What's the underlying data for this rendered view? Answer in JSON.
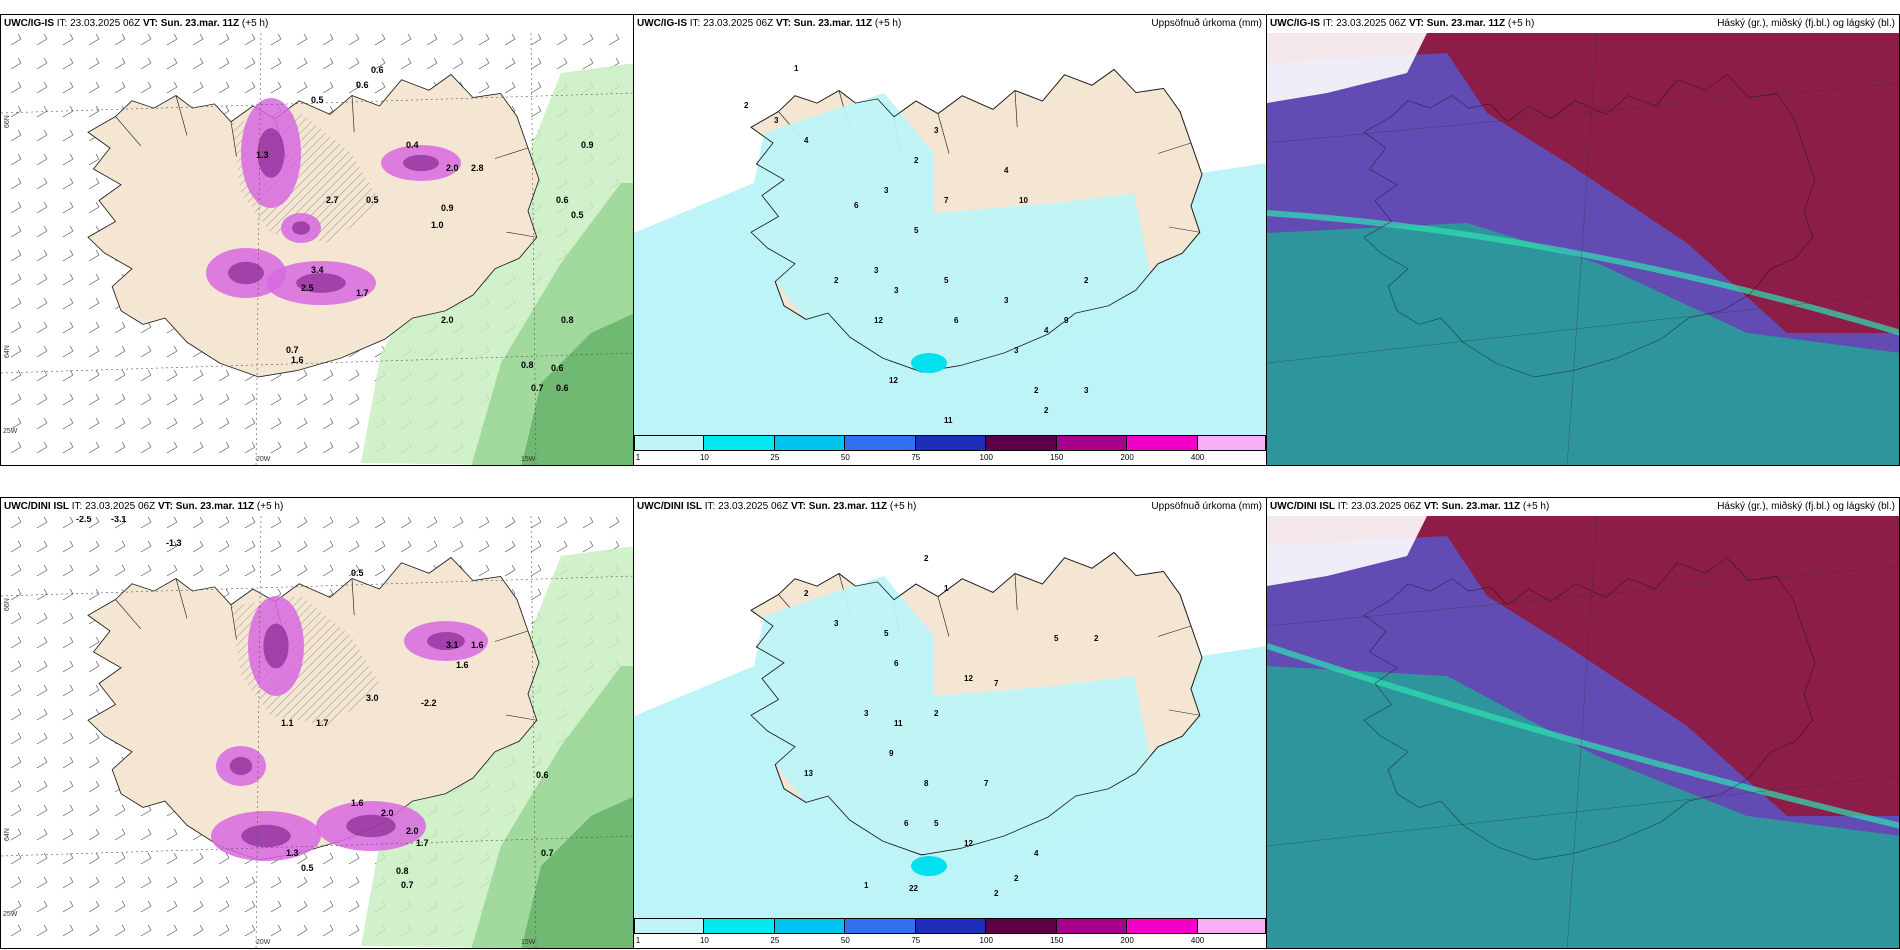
{
  "panels": [
    {
      "id": "top-left",
      "model": "UWC/IG-IS",
      "it_label": "IT:",
      "it_value": "23.03.2025 06Z",
      "vt_label": "VT:",
      "vt_value": "Sun. 23.mar. 11Z",
      "lead": "(+5 h)",
      "right_title": "",
      "lon_labels": [
        "20W",
        "15W",
        "25W"
      ],
      "lat_labels": [
        "66N",
        "64N"
      ],
      "values": [
        "0.6",
        "0.5",
        "0.6",
        "0.9",
        "1.3",
        "2.8",
        "0.4",
        "2.0",
        "3.4",
        "2.5",
        "1.7",
        "2.7",
        "0.5",
        "0.9",
        "1.0",
        "0.8",
        "0.6",
        "0.5",
        "0.7",
        "0.8",
        "0.6",
        "0.7",
        "0.6",
        "2.0",
        "1.6"
      ]
    },
    {
      "id": "top-middle",
      "model": "UWC/IG-IS",
      "it_label": "IT:",
      "it_value": "23.03.2025 06Z",
      "vt_label": "VT:",
      "vt_value": "Sun. 23.mar. 11Z",
      "lead": "(+5 h)",
      "right_title": "Uppsöfnuð úrkoma (mm)",
      "values": [
        "1",
        "2",
        "3",
        "4",
        "3",
        "2",
        "4",
        "3",
        "6",
        "7",
        "10",
        "5",
        "3",
        "2",
        "3",
        "12",
        "5",
        "6",
        "3",
        "4",
        "2",
        "9",
        "3",
        "2",
        "11",
        "12",
        "2",
        "3"
      ],
      "colorbar_ticks": [
        "1",
        "10",
        "25",
        "50",
        "75",
        "100",
        "150",
        "200",
        "400"
      ]
    },
    {
      "id": "top-right",
      "model": "UWC/IG-IS",
      "it_label": "IT:",
      "it_value": "23.03.2025 06Z",
      "vt_label": "VT:",
      "vt_value": "Sun. 23.mar. 11Z",
      "lead": "(+5 h)",
      "right_title": "Háský (gr.), miðský (fj.bl.) og lágský (bl.)"
    },
    {
      "id": "bottom-left",
      "model": "UWC/DINI ISL",
      "it_label": "IT:",
      "it_value": "23.03.2025 06Z",
      "vt_label": "VT:",
      "vt_value": "Sun. 23.mar. 11Z",
      "lead": "(+5 h)",
      "right_title": "",
      "lon_labels": [
        "20W",
        "15W",
        "25W"
      ],
      "lat_labels": [
        "66N",
        "64N"
      ],
      "values": [
        "-2.5",
        "-3.1",
        "-1.3",
        "0.5",
        "1.6",
        "3.1",
        "1.6",
        "1.7",
        "3.0",
        "-2.2",
        "1.1",
        "2.0",
        "1.6",
        "2.0",
        "1.7",
        "0.8",
        "0.7",
        "0.6",
        "0.7",
        "1.3",
        "0.5"
      ]
    },
    {
      "id": "bottom-middle",
      "model": "UWC/DINI ISL",
      "it_label": "IT:",
      "it_value": "23.03.2025 06Z",
      "vt_label": "VT:",
      "vt_value": "Sun. 23.mar. 11Z",
      "lead": "(+5 h)",
      "right_title": "Uppsöfnuð úrkoma (mm)",
      "values": [
        "2",
        "1",
        "2",
        "3",
        "5",
        "6",
        "12",
        "7",
        "2",
        "5",
        "2",
        "3",
        "13",
        "11",
        "9",
        "8",
        "6",
        "5",
        "12",
        "7",
        "4",
        "2",
        "1",
        "2",
        "22"
      ],
      "colorbar_ticks": [
        "1",
        "10",
        "25",
        "50",
        "75",
        "100",
        "150",
        "200",
        "400"
      ]
    },
    {
      "id": "bottom-right",
      "model": "UWC/DINI ISL",
      "it_label": "IT:",
      "it_value": "23.03.2025 06Z",
      "vt_label": "VT:",
      "vt_value": "Sun. 23.mar. 11Z",
      "lead": "(+5 h)",
      "right_title": "Háský (gr.), miðský (fj.bl.) og lágský (bl.)"
    }
  ],
  "colorbar_colors": [
    "#bff5f7",
    "#00eaf0",
    "#00c4ef",
    "#2f6ff0",
    "#1d2fb8",
    "#5e0047",
    "#a8008a",
    "#f000c8",
    "#f7b0f5"
  ],
  "colors": {
    "land": "#f5e6d3",
    "sea": "#ffffff",
    "precip_light": "#bdf4f7",
    "green_light": "#c8eec1",
    "green_mid": "#8fcf8a",
    "green_dark": "#3e9a4a",
    "purple": "#d868e0",
    "purple_dark": "#7a1b86",
    "cloud_high": "#1fae96",
    "cloud_mid": "#5a55c8",
    "cloud_low": "#8b1d48"
  }
}
